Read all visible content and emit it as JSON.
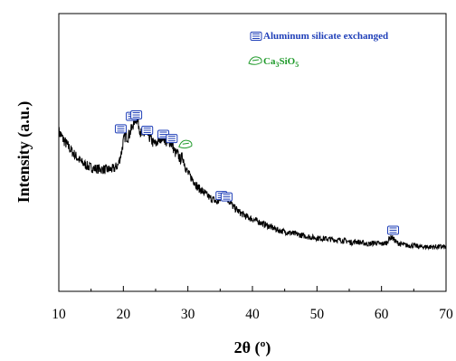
{
  "chart_data": {
    "type": "line",
    "title": "",
    "xlabel": "2θ (º)",
    "ylabel": "Intensity (a.u.)",
    "xlim": [
      10,
      70
    ],
    "ylim": [
      0,
      100
    ],
    "xticks": [
      10,
      20,
      30,
      40,
      50,
      60,
      70
    ],
    "y_tick_labels_shown": false,
    "grid": false,
    "legend_position": "top-right",
    "series": [
      {
        "name": "",
        "color": "#000000",
        "x": [
          10,
          10.6,
          11.5,
          12.5,
          13.5,
          14.5,
          15.5,
          16.5,
          17.5,
          18.5,
          19.2,
          19.7,
          20.0,
          20.3,
          20.7,
          21.0,
          21.3,
          21.6,
          21.9,
          22.1,
          22.4,
          22.7,
          23.0,
          23.4,
          23.8,
          24.2,
          24.6,
          25.0,
          25.5,
          26.0,
          26.4,
          26.8,
          27.2,
          27.6,
          28.0,
          28.4,
          28.8,
          29.2,
          29.6,
          30.0,
          30.5,
          31.0,
          31.5,
          32.0,
          32.5,
          33.0,
          33.5,
          34.0,
          34.5,
          35.0,
          35.4,
          35.8,
          36.2,
          36.6,
          37.0,
          37.5,
          38.0,
          39.0,
          40.0,
          41.0,
          42.0,
          43.0,
          44.0,
          45.0,
          46.0,
          47.0,
          48.0,
          49.0,
          50.0,
          51.0,
          52.0,
          53.0,
          54.0,
          54.8,
          55.5,
          56.0,
          57.0,
          58.0,
          59.0,
          60.0,
          60.8,
          61.2,
          61.6,
          62.0,
          62.4,
          63.0,
          64.0,
          65.0,
          66.0,
          67.0,
          68.0,
          69.0,
          70.0
        ],
        "y": [
          57.5,
          55.0,
          52.0,
          49.0,
          46.5,
          45.0,
          44.2,
          44.0,
          43.8,
          44.0,
          45.5,
          50.0,
          54.0,
          56.0,
          55.5,
          57.0,
          58.5,
          61.0,
          62.5,
          62.0,
          60.0,
          57.0,
          56.0,
          57.0,
          56.5,
          55.0,
          53.5,
          53.0,
          54.5,
          56.0,
          55.0,
          53.0,
          54.0,
          52.5,
          50.0,
          49.5,
          47.5,
          48.5,
          45.0,
          42.5,
          41.0,
          39.5,
          37.5,
          36.5,
          35.5,
          34.5,
          33.5,
          33.0,
          32.0,
          33.0,
          35.0,
          34.5,
          33.0,
          32.0,
          30.5,
          29.5,
          28.5,
          27.0,
          26.0,
          25.0,
          24.0,
          23.0,
          22.0,
          21.5,
          21.0,
          20.5,
          20.0,
          19.5,
          19.2,
          19.0,
          18.8,
          18.5,
          18.3,
          18.0,
          17.5,
          18.0,
          17.5,
          17.0,
          17.5,
          17.0,
          17.5,
          19.0,
          19.5,
          18.5,
          17.5,
          17.0,
          16.5,
          16.5,
          16.0,
          16.0,
          16.0,
          16.0,
          16.0
        ]
      }
    ],
    "markers": [
      {
        "label": "Aluminum silicate exchanged",
        "color": "#1f3fb8",
        "x": [
          19.6,
          21.3,
          22.0,
          23.7,
          26.2,
          27.5,
          35.2,
          36.0,
          61.8
        ],
        "y": [
          58.5,
          63.0,
          63.5,
          58.0,
          56.5,
          55.0,
          34.5,
          34.0,
          22.0
        ]
      },
      {
        "label": "Ca3SiO5",
        "color": "#1f9a2a",
        "x": [
          29.6
        ],
        "y": [
          53.0
        ]
      }
    ],
    "legend": [
      {
        "label": "Aluminum  silicate exchanged",
        "color": "#1f3fb8"
      },
      {
        "label_main": "Ca",
        "label_sub1": "3",
        "label_mid": "SiO",
        "label_sub2": "5",
        "color": "#1f9a2a"
      }
    ]
  }
}
